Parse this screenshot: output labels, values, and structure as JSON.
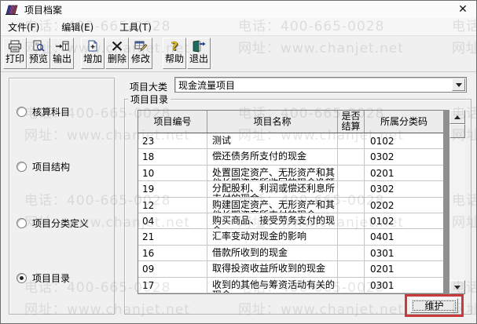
{
  "window": {
    "title": "项目档案",
    "close_glyph": "✕"
  },
  "menu": {
    "items": [
      {
        "label": "文件(F)"
      },
      {
        "label": "编辑(E)"
      },
      {
        "label": "工具(T)"
      }
    ]
  },
  "toolbar": {
    "buttons": [
      {
        "label": "打印",
        "icon": "printer-icon"
      },
      {
        "label": "预览",
        "icon": "preview-icon"
      },
      {
        "label": "输出",
        "icon": "export-icon"
      },
      {
        "label": "增加",
        "icon": "add-icon"
      },
      {
        "label": "删除",
        "icon": "delete-icon"
      },
      {
        "label": "修改",
        "icon": "edit-icon"
      },
      {
        "label": "帮助",
        "icon": "help-icon"
      },
      {
        "label": "退出",
        "icon": "exit-icon"
      }
    ]
  },
  "category": {
    "label": "项目大类",
    "value": "现金流量项目"
  },
  "sidebar": {
    "options": [
      {
        "label": "核算科目",
        "selected": false
      },
      {
        "label": "项目结构",
        "selected": false
      },
      {
        "label": "项目分类定义",
        "selected": false
      },
      {
        "label": "项目目录",
        "selected": true
      }
    ]
  },
  "directory": {
    "group_label": "项目目录",
    "columns": [
      "项目编号",
      "项目名称",
      "是否结算",
      "所属分类码"
    ],
    "rows": [
      {
        "code": "23",
        "name": "测试",
        "settle": "",
        "class_code": "0102"
      },
      {
        "code": "18",
        "name": "偿还债务所支付的现金",
        "settle": "",
        "class_code": "0302"
      },
      {
        "code": "10",
        "name": "处置固定资产、无形资产和其他长期资产所收回的现金净额",
        "settle": "",
        "class_code": "0201"
      },
      {
        "code": "19",
        "name": "分配股利、利润或偿还利息所支付的现金",
        "settle": "",
        "class_code": "0302"
      },
      {
        "code": "12",
        "name": "购建固定资产、无形资产和其他长期资产所支付的现金",
        "settle": "",
        "class_code": "0202"
      },
      {
        "code": "04",
        "name": "购买商品、接受劳务支付的现金",
        "settle": "",
        "class_code": "0102"
      },
      {
        "code": "21",
        "name": "汇率变动对现金的影响",
        "settle": "",
        "class_code": "0401"
      },
      {
        "code": "16",
        "name": "借款所收到的现金",
        "settle": "",
        "class_code": "0301"
      },
      {
        "code": "09",
        "name": "取得投资收益所收到的现金",
        "settle": "",
        "class_code": "0201"
      },
      {
        "code": "17",
        "name": "收到的其他与筹资活动有关的现金",
        "settle": "",
        "class_code": "0301"
      }
    ]
  },
  "maintain_button": {
    "label": "维护"
  },
  "watermark": {
    "phone": "电话：400-665-0028",
    "site": "网址：www.chanjet.net"
  },
  "colors": {
    "annotation": "#c93a3a"
  }
}
